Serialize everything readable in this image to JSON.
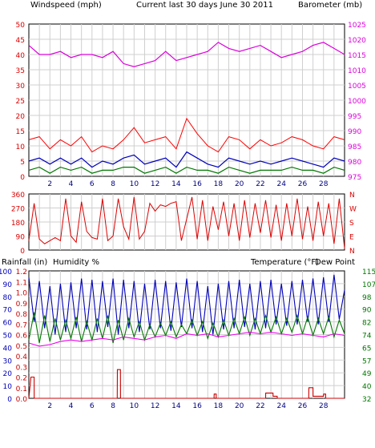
{
  "title": "Current last 30 days June 30 2011",
  "colors": {
    "wind": "#dd0000",
    "gust_outline": "#ff0000",
    "baro": "#dd00dd",
    "humidity": "#0000bb",
    "temperature": "#007700",
    "dewpoint": "#ee00ee",
    "rain": "#cc0000",
    "grid": "#cfcfcf",
    "frame": "#000000"
  },
  "day_ticks": [
    "2",
    "4",
    "6",
    "8",
    "10",
    "12",
    "14",
    "16",
    "18",
    "20",
    "22",
    "24",
    "26",
    "28"
  ],
  "chart_data": [
    {
      "type": "line",
      "panel": "wind_baro",
      "left_axis_label": "Windspeed (mph)",
      "right_axis_label": "Barometer (mb)",
      "left_ticks": [
        "50",
        "45",
        "40",
        "35",
        "30",
        "25",
        "20",
        "15",
        "10",
        "5",
        "0"
      ],
      "right_ticks": [
        "1025",
        "1020",
        "1015",
        "1010",
        "1005",
        "1000",
        "995",
        "990",
        "985",
        "980",
        "975"
      ],
      "left_range": [
        0,
        50
      ],
      "right_range": [
        975,
        1025
      ],
      "x_range": [
        0,
        30
      ],
      "series": [
        {
          "key": "wind_gust",
          "x": [
            0,
            1,
            2,
            3,
            4,
            5,
            6,
            7,
            8,
            9,
            10,
            11,
            12,
            13,
            14,
            15,
            16,
            17,
            18,
            19,
            20,
            21,
            22,
            23,
            24,
            25,
            26,
            27,
            28,
            29,
            30
          ],
          "values": [
            12,
            13,
            9,
            12,
            10,
            13,
            8,
            10,
            9,
            12,
            16,
            11,
            12,
            13,
            9,
            19,
            14,
            10,
            8,
            13,
            12,
            9,
            12,
            10,
            11,
            13,
            12,
            10,
            9,
            13,
            12
          ]
        },
        {
          "key": "wind_avg",
          "x": [
            0,
            1,
            2,
            3,
            4,
            5,
            6,
            7,
            8,
            9,
            10,
            11,
            12,
            13,
            14,
            15,
            16,
            17,
            18,
            19,
            20,
            21,
            22,
            23,
            24,
            25,
            26,
            27,
            28,
            29,
            30
          ],
          "values": [
            5,
            6,
            4,
            6,
            4,
            6,
            3,
            5,
            4,
            6,
            7,
            4,
            5,
            6,
            3,
            8,
            6,
            4,
            3,
            6,
            5,
            4,
            5,
            4,
            5,
            6,
            5,
            4,
            3,
            6,
            5
          ]
        },
        {
          "key": "wind_min",
          "x": [
            0,
            1,
            2,
            3,
            4,
            5,
            6,
            7,
            8,
            9,
            10,
            11,
            12,
            13,
            14,
            15,
            16,
            17,
            18,
            19,
            20,
            21,
            22,
            23,
            24,
            25,
            26,
            27,
            28,
            29,
            30
          ],
          "values": [
            2,
            3,
            1,
            3,
            2,
            3,
            1,
            2,
            2,
            3,
            3,
            1,
            2,
            3,
            1,
            3,
            2,
            2,
            1,
            3,
            2,
            1,
            2,
            2,
            2,
            3,
            2,
            2,
            1,
            3,
            2
          ]
        },
        {
          "key": "barometer",
          "x": [
            0,
            1,
            2,
            3,
            4,
            5,
            6,
            7,
            8,
            9,
            10,
            11,
            12,
            13,
            14,
            15,
            16,
            17,
            18,
            19,
            20,
            21,
            22,
            23,
            24,
            25,
            26,
            27,
            28,
            29,
            30
          ],
          "values": [
            1018,
            1015,
            1015,
            1016,
            1014,
            1015,
            1015,
            1014,
            1016,
            1012,
            1011,
            1012,
            1013,
            1016,
            1013,
            1014,
            1015,
            1016,
            1019,
            1017,
            1016,
            1017,
            1018,
            1016,
            1014,
            1015,
            1016,
            1018,
            1019,
            1017,
            1015
          ]
        }
      ]
    },
    {
      "type": "line",
      "panel": "wind_direction",
      "left_ticks": [
        "360",
        "270",
        "180",
        "90",
        "0"
      ],
      "right_ticks": [
        "N",
        "W",
        "S",
        "E",
        "N"
      ],
      "left_range": [
        0,
        360
      ],
      "x_range": [
        0,
        30
      ],
      "series": [
        {
          "key": "direction",
          "x": [
            0,
            0.5,
            1,
            1.5,
            2,
            2.5,
            3,
            3.5,
            4,
            4.5,
            5,
            5.5,
            6,
            6.5,
            7,
            7.5,
            8,
            8.5,
            9,
            9.5,
            10,
            10.5,
            11,
            11.5,
            12,
            12.5,
            13,
            13.5,
            14,
            14.5,
            15,
            15.5,
            16,
            16.5,
            17,
            17.5,
            18,
            18.5,
            19,
            19.5,
            20,
            20.5,
            21,
            21.5,
            22,
            22.5,
            23,
            23.5,
            24,
            24.5,
            25,
            25.5,
            26,
            26.5,
            27,
            27.5,
            28,
            28.5,
            29,
            29.5,
            30
          ],
          "values": [
            60,
            300,
            70,
            40,
            60,
            80,
            60,
            330,
            90,
            50,
            310,
            120,
            80,
            70,
            330,
            60,
            90,
            330,
            150,
            70,
            340,
            70,
            120,
            300,
            250,
            290,
            280,
            300,
            310,
            60,
            200,
            340,
            70,
            320,
            60,
            280,
            130,
            310,
            90,
            300,
            60,
            320,
            80,
            300,
            110,
            320,
            80,
            290,
            60,
            300,
            90,
            330,
            70,
            280,
            60,
            310,
            90,
            300,
            40,
            330,
            10
          ]
        }
      ]
    },
    {
      "type": "line",
      "panel": "rain_humidity_temp",
      "left_axis_label_1": "Rainfall (in)",
      "left_axis_label_2": "Humidity %",
      "right_axis_label_1": "Temperature (°F)",
      "right_axis_label_2": "Dew Point",
      "humidity_ticks": [
        "100",
        "90",
        "80",
        "70",
        "60",
        "50",
        "40",
        "30",
        "20",
        "10",
        "0"
      ],
      "rain_ticks": [
        "1.2",
        "1.1",
        "1.0",
        "0.9",
        "0.8",
        "0.7",
        "0.6",
        "0.5",
        "0.4",
        "0.3",
        "0.2",
        "0.1",
        "0.0"
      ],
      "temp_ticks": [
        "115",
        "107",
        "98",
        "90",
        "82",
        "74",
        "65",
        "57",
        "49",
        "40",
        "32"
      ],
      "humidity_range": [
        0,
        100
      ],
      "rain_range": [
        0,
        1.2
      ],
      "temp_range": [
        32,
        115
      ],
      "x_range": [
        0,
        30
      ],
      "series": [
        {
          "key": "humidity",
          "x": [
            0,
            0.5,
            1,
            1.5,
            2,
            2.5,
            3,
            3.5,
            4,
            4.5,
            5,
            5.5,
            6,
            6.5,
            7,
            7.5,
            8,
            8.5,
            9,
            9.5,
            10,
            10.5,
            11,
            11.5,
            12,
            12.5,
            13,
            13.5,
            14,
            14.5,
            15,
            15.5,
            16,
            16.5,
            17,
            17.5,
            18,
            18.5,
            19,
            19.5,
            20,
            20.5,
            21,
            21.5,
            22,
            22.5,
            23,
            23.5,
            24,
            24.5,
            25,
            25.5,
            26,
            26.5,
            27,
            27.5,
            28,
            28.5,
            29,
            29.5,
            30
          ],
          "values": [
            95,
            60,
            92,
            55,
            88,
            50,
            90,
            52,
            91,
            55,
            94,
            54,
            93,
            52,
            92,
            56,
            94,
            50,
            93,
            55,
            92,
            52,
            90,
            54,
            93,
            55,
            92,
            53,
            91,
            56,
            94,
            55,
            92,
            52,
            88,
            50,
            90,
            54,
            92,
            55,
            93,
            56,
            90,
            54,
            92,
            55,
            93,
            58,
            90,
            57,
            92,
            58,
            93,
            60,
            94,
            58,
            95,
            60,
            97,
            62,
            85
          ]
        },
        {
          "key": "temperature",
          "x": [
            0,
            0.5,
            1,
            1.5,
            2,
            2.5,
            3,
            3.5,
            4,
            4.5,
            5,
            5.5,
            6,
            6.5,
            7,
            7.5,
            8,
            8.5,
            9,
            9.5,
            10,
            10.5,
            11,
            11.5,
            12,
            12.5,
            13,
            13.5,
            14,
            14.5,
            15,
            15.5,
            16,
            16.5,
            17,
            17.5,
            18,
            18.5,
            19,
            19.5,
            20,
            20.5,
            21,
            21.5,
            22,
            22.5,
            23,
            23.5,
            24,
            24.5,
            25,
            25.5,
            26,
            26.5,
            27,
            27.5,
            28,
            28.5,
            29,
            29.5,
            30
          ],
          "values": [
            70,
            88,
            68,
            86,
            69,
            84,
            70,
            83,
            71,
            85,
            69,
            82,
            70,
            84,
            71,
            86,
            68,
            83,
            70,
            84,
            72,
            82,
            70,
            80,
            72,
            81,
            73,
            82,
            72,
            80,
            74,
            83,
            73,
            82,
            71,
            81,
            72,
            83,
            73,
            84,
            74,
            85,
            73,
            84,
            74,
            86,
            75,
            85,
            74,
            84,
            75,
            86,
            74,
            85,
            73,
            84,
            74,
            85,
            72,
            83,
            74
          ]
        },
        {
          "key": "dewpoint",
          "x": [
            0,
            1,
            2,
            3,
            4,
            5,
            6,
            7,
            8,
            9,
            10,
            11,
            12,
            13,
            14,
            15,
            16,
            17,
            18,
            19,
            20,
            21,
            22,
            23,
            24,
            25,
            26,
            27,
            28,
            29,
            30
          ],
          "values": [
            68,
            66,
            67,
            69,
            70,
            69,
            70,
            71,
            70,
            72,
            71,
            70,
            72,
            73,
            71,
            74,
            73,
            74,
            72,
            73,
            74,
            75,
            74,
            75,
            74,
            73,
            74,
            73,
            72,
            74,
            73
          ]
        },
        {
          "key": "rainfall",
          "x": [
            0,
            0.2,
            0.21,
            0.5,
            0.51,
            8.4,
            8.41,
            8.7,
            8.71,
            17.6,
            17.61,
            17.8,
            17.81,
            22.5,
            22.51,
            23.2,
            23.21,
            23.6,
            23.61,
            26.6,
            26.61,
            27.0,
            27.01,
            28.0,
            28.01,
            28.2,
            28.21,
            30
          ],
          "values": [
            0,
            0.2,
            0.2,
            0.2,
            0,
            0,
            0.27,
            0.27,
            0,
            0,
            0.04,
            0.04,
            0,
            0,
            0.05,
            0.05,
            0.02,
            0.02,
            0,
            0,
            0.1,
            0.1,
            0.02,
            0.02,
            0.04,
            0.04,
            0,
            0
          ]
        }
      ]
    }
  ]
}
